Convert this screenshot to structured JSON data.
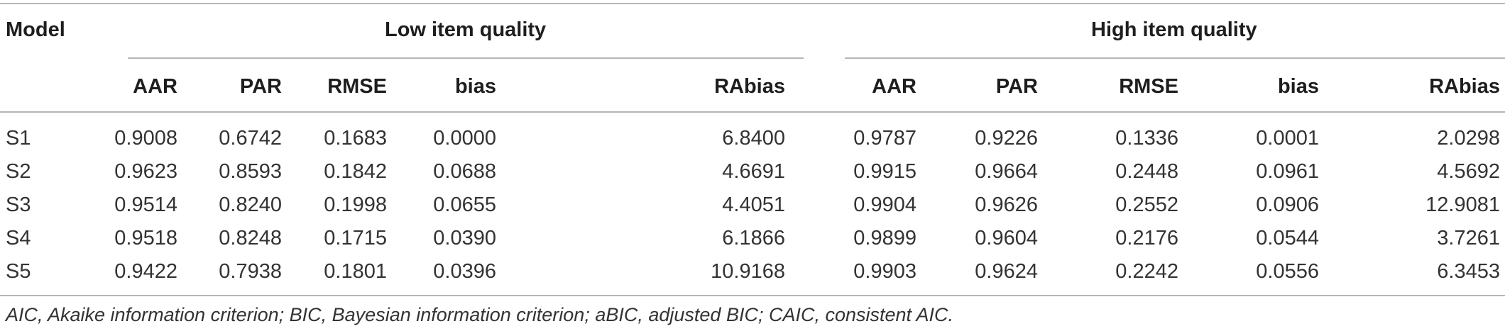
{
  "table": {
    "model_header": "Model",
    "group_headers": [
      "Low item quality",
      "High item quality"
    ],
    "columns": [
      "AAR",
      "PAR",
      "RMSE",
      "bias",
      "RAbias",
      "AAR",
      "PAR",
      "RMSE",
      "bias",
      "RAbias"
    ],
    "rows": [
      {
        "model": "S1",
        "values": [
          "0.9008",
          "0.6742",
          "0.1683",
          "0.0000",
          "6.8400",
          "0.9787",
          "0.9226",
          "0.1336",
          "0.0001",
          "2.0298"
        ]
      },
      {
        "model": "S2",
        "values": [
          "0.9623",
          "0.8593",
          "0.1842",
          "0.0688",
          "4.6691",
          "0.9915",
          "0.9664",
          "0.2448",
          "0.0961",
          "4.5692"
        ]
      },
      {
        "model": "S3",
        "values": [
          "0.9514",
          "0.8240",
          "0.1998",
          "0.0655",
          "4.4051",
          "0.9904",
          "0.9626",
          "0.2552",
          "0.0906",
          "12.9081"
        ]
      },
      {
        "model": "S4",
        "values": [
          "0.9518",
          "0.8248",
          "0.1715",
          "0.0390",
          "6.1866",
          "0.9899",
          "0.9604",
          "0.2176",
          "0.0544",
          "3.7261"
        ]
      },
      {
        "model": "S5",
        "values": [
          "0.9422",
          "0.7938",
          "0.1801",
          "0.0396",
          "10.9168",
          "0.9903",
          "0.9624",
          "0.2242",
          "0.0556",
          "6.3453"
        ]
      }
    ],
    "footnote": "AIC, Akaike information criterion; BIC, Bayesian information criterion; aBIC, adjusted BIC; CAIC, consistent AIC."
  }
}
